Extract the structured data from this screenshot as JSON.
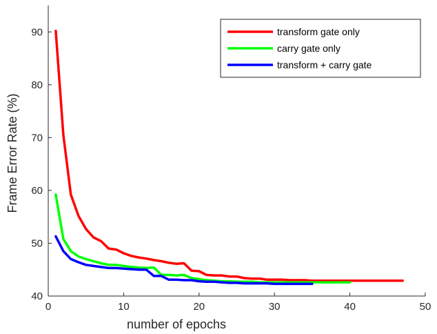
{
  "chart_data": {
    "type": "line",
    "title": "",
    "xlabel": "number of epochs",
    "ylabel": "Frame Error Rate (%)",
    "xlim": [
      0,
      50
    ],
    "ylim": [
      40,
      95
    ],
    "xticks": [
      0,
      10,
      20,
      30,
      40,
      50
    ],
    "yticks": [
      40,
      50,
      60,
      70,
      80,
      90
    ],
    "grid": false,
    "legend": "top-right",
    "series": [
      {
        "name": "transform gate only",
        "color": "#ff0000",
        "x": [
          1,
          2,
          3,
          4,
          5,
          6,
          7,
          8,
          9,
          10,
          11,
          12,
          13,
          14,
          15,
          16,
          17,
          18,
          19,
          20,
          21,
          22,
          23,
          24,
          25,
          26,
          27,
          28,
          29,
          30,
          31,
          32,
          33,
          34,
          35,
          36,
          37,
          38,
          39,
          40,
          41,
          42,
          43,
          44,
          45,
          46,
          47
        ],
        "y": [
          90.2,
          70.5,
          59.2,
          55.2,
          52.7,
          51.1,
          50.4,
          49.0,
          48.8,
          48.1,
          47.6,
          47.3,
          47.1,
          46.8,
          46.6,
          46.3,
          46.1,
          46.2,
          44.8,
          44.7,
          44.0,
          43.9,
          43.9,
          43.7,
          43.7,
          43.4,
          43.3,
          43.3,
          43.1,
          43.1,
          43.1,
          43.0,
          43.0,
          43.0,
          42.9,
          42.9,
          42.9,
          42.9,
          42.9,
          42.9,
          42.9,
          42.9,
          42.9,
          42.9,
          42.9,
          42.9,
          42.9
        ]
      },
      {
        "name": "carry gate only",
        "color": "#00ff00",
        "x": [
          1,
          2,
          3,
          4,
          5,
          6,
          7,
          8,
          9,
          10,
          11,
          12,
          13,
          14,
          15,
          16,
          17,
          18,
          19,
          20,
          21,
          22,
          23,
          24,
          25,
          26,
          27,
          28,
          29,
          30,
          31,
          32,
          33,
          34,
          35,
          36,
          37,
          38,
          39,
          40
        ],
        "y": [
          59.2,
          50.8,
          48.5,
          47.5,
          47.0,
          46.6,
          46.2,
          45.9,
          45.9,
          45.7,
          45.5,
          45.4,
          45.3,
          45.4,
          44.0,
          44.0,
          43.9,
          44.0,
          43.4,
          43.2,
          43.0,
          42.9,
          42.8,
          42.8,
          42.7,
          42.7,
          42.7,
          42.6,
          42.6,
          42.6,
          42.6,
          42.6,
          42.6,
          42.6,
          42.6,
          42.6,
          42.6,
          42.6,
          42.6,
          42.6
        ]
      },
      {
        "name": "transform + carry gate",
        "color": "#0000ff",
        "x": [
          1,
          2,
          3,
          4,
          5,
          6,
          7,
          8,
          9,
          10,
          11,
          12,
          13,
          14,
          15,
          16,
          17,
          18,
          19,
          20,
          21,
          22,
          23,
          24,
          25,
          26,
          27,
          28,
          29,
          30,
          31,
          32,
          33,
          34,
          35
        ],
        "y": [
          51.3,
          48.5,
          47.0,
          46.4,
          45.9,
          45.7,
          45.5,
          45.3,
          45.3,
          45.2,
          45.1,
          45.0,
          45.0,
          43.8,
          43.8,
          43.1,
          43.1,
          43.0,
          43.0,
          42.8,
          42.7,
          42.7,
          42.6,
          42.5,
          42.5,
          42.4,
          42.4,
          42.4,
          42.4,
          42.3,
          42.3,
          42.3,
          42.3,
          42.3,
          42.3
        ]
      }
    ]
  }
}
